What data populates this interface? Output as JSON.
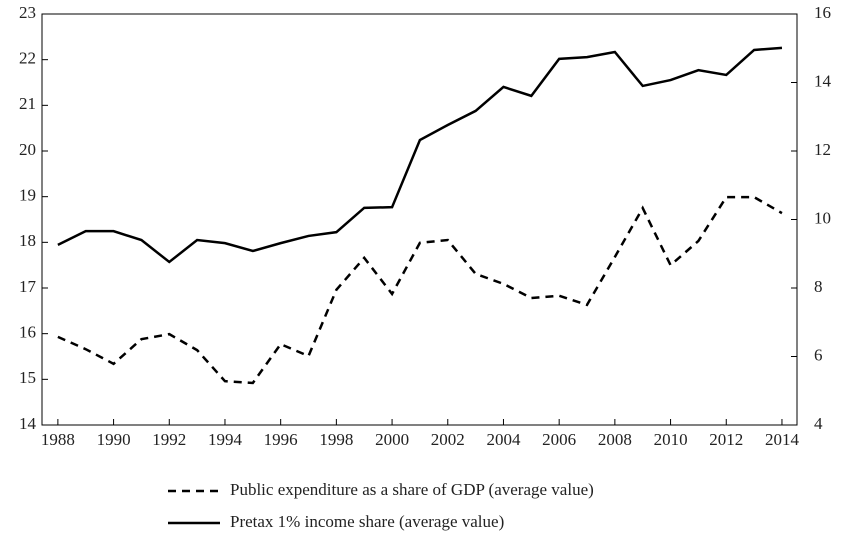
{
  "chart_data": {
    "type": "line",
    "x": [
      1988,
      1989,
      1990,
      1991,
      1992,
      1993,
      1994,
      1995,
      1996,
      1997,
      1998,
      1999,
      2000,
      2001,
      2002,
      2003,
      2004,
      2005,
      2006,
      2007,
      2008,
      2009,
      2010,
      2011,
      2012,
      2013,
      2014
    ],
    "series": [
      {
        "name": "Public expenditure as a share of GDP (average value)",
        "color": "#000000",
        "line_style": "dashed",
        "axis": "y",
        "values": [
          15.93,
          15.66,
          15.34,
          15.88,
          15.99,
          15.64,
          14.96,
          14.92,
          15.77,
          15.51,
          16.96,
          17.66,
          16.87,
          17.99,
          18.05,
          17.31,
          17.09,
          16.78,
          16.83,
          16.63,
          17.68,
          18.75,
          17.5,
          18.03,
          18.99,
          18.99,
          18.64
        ]
      },
      {
        "name": "Pretax 1% income share (average value)",
        "color": "#000000",
        "line_style": "solid",
        "axis": "y2",
        "values": [
          9.26,
          9.66,
          9.66,
          9.4,
          8.76,
          9.4,
          9.31,
          9.08,
          9.31,
          9.52,
          9.63,
          10.34,
          10.36,
          12.32,
          12.76,
          13.17,
          13.87,
          13.61,
          14.69,
          14.74,
          14.89,
          13.9,
          14.07,
          14.36,
          14.22,
          14.95,
          15.01
        ]
      }
    ],
    "xlim": [
      1987.43,
      2014.54
    ],
    "xticks": [
      1988,
      1990,
      1992,
      1994,
      1996,
      1998,
      2000,
      2002,
      2004,
      2006,
      2008,
      2010,
      2012,
      2014
    ],
    "ylim": [
      14,
      23
    ],
    "yticks": [
      14,
      15,
      16,
      17,
      18,
      19,
      20,
      21,
      22,
      23
    ],
    "y2lim": [
      4,
      16
    ],
    "y2ticks": [
      4,
      6,
      8,
      10,
      12,
      14,
      16
    ],
    "grid": false,
    "legend": "bottom"
  }
}
